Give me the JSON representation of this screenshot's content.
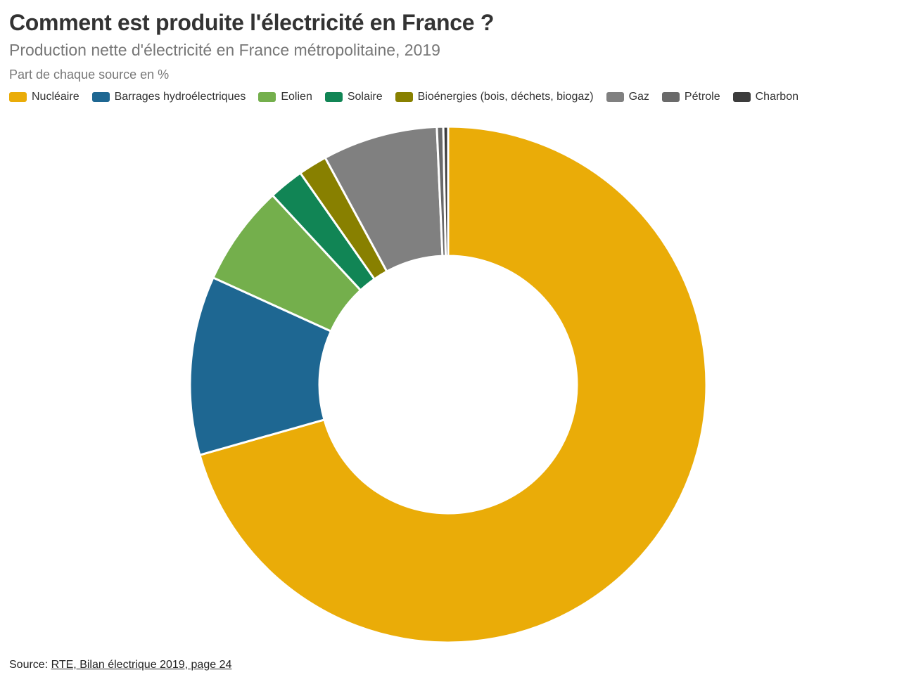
{
  "header": {
    "title": "Comment est produite l'électricité en France ?",
    "subtitle": "Production nette d'électricité en France métropolitaine, 2019",
    "unit_note": "Part de chaque source en %"
  },
  "footer": {
    "source_prefix": "Source: ",
    "source_link": "RTE, Bilan électrique 2019, page 24"
  },
  "chart_data": {
    "type": "pie",
    "subtype": "donut",
    "title": "Comment est produite l'électricité en France ?",
    "subtitle": "Production nette d'électricité en France métropolitaine, 2019",
    "unit": "%",
    "legend_position": "top",
    "categories": [
      "Nucléaire",
      "Barrages hydroélectriques",
      "Eolien",
      "Solaire",
      "Bioénergies (bois, déchets, biogaz)",
      "Gaz",
      "Pétrole",
      "Charbon"
    ],
    "values": [
      70.6,
      11.2,
      6.3,
      2.2,
      1.8,
      7.2,
      0.4,
      0.3
    ],
    "colors": [
      "#EAAC08",
      "#1E6792",
      "#74AF4C",
      "#118555",
      "#888000",
      "#808080",
      "#6A6A6A",
      "#3C3C3C"
    ]
  }
}
